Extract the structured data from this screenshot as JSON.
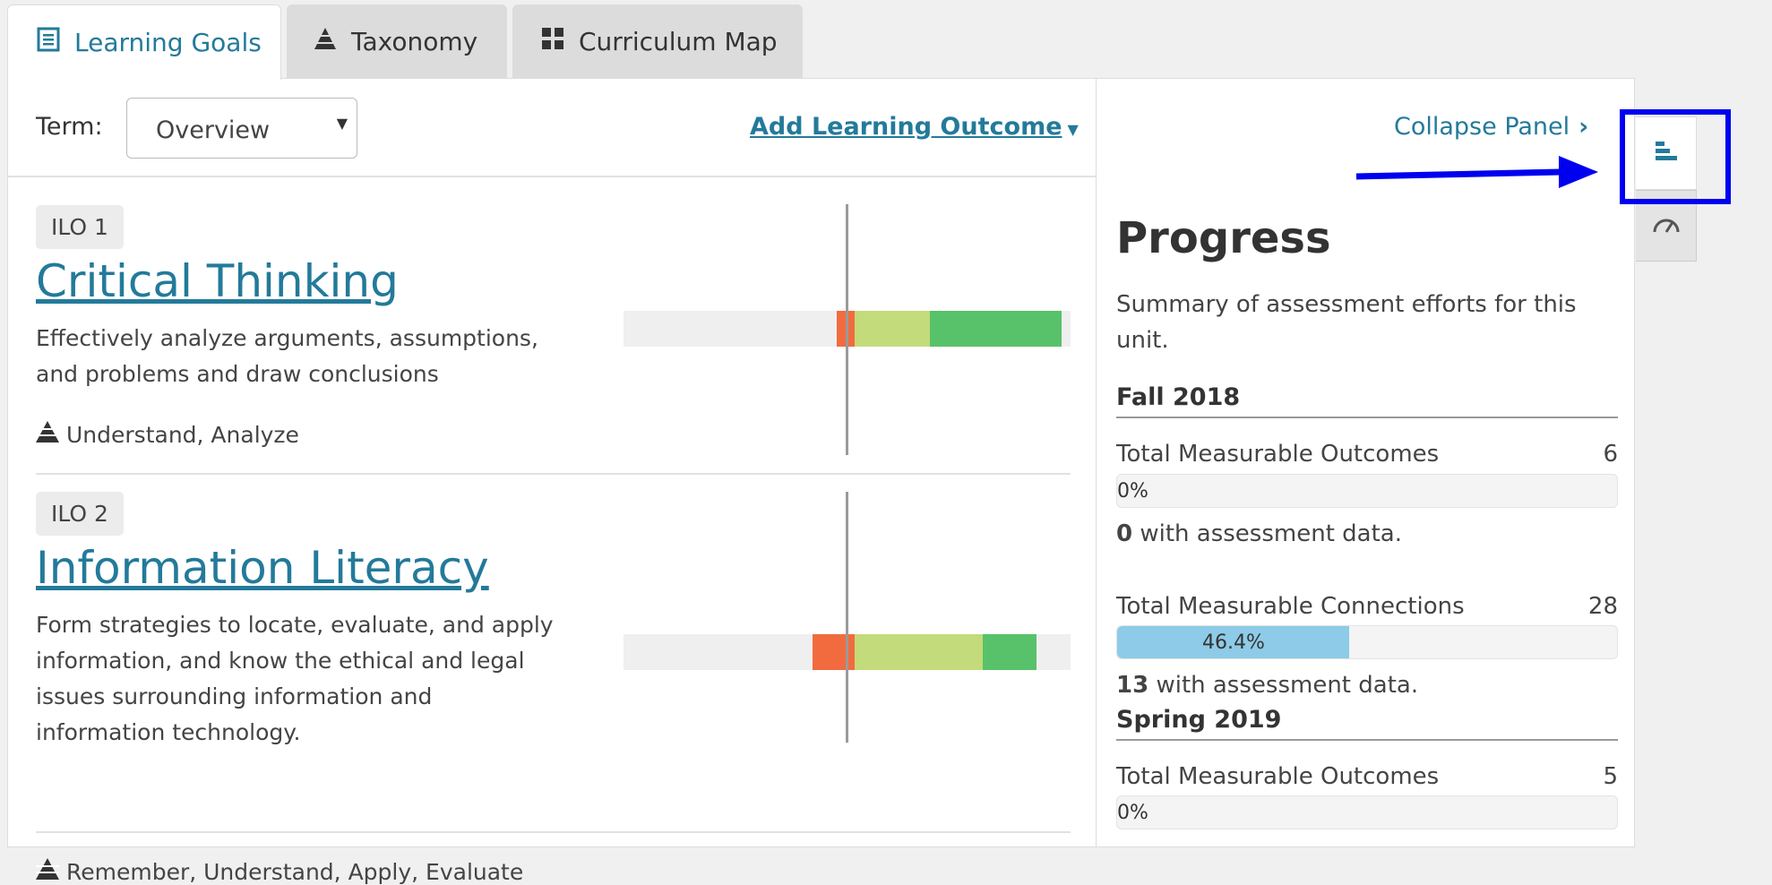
{
  "tabs": [
    {
      "label": "Learning Goals",
      "icon": "list-icon",
      "active": true
    },
    {
      "label": "Taxonomy",
      "icon": "pyramid-icon",
      "active": false
    },
    {
      "label": "Curriculum Map",
      "icon": "grid-icon",
      "active": false
    }
  ],
  "toolbar": {
    "term_label": "Term:",
    "term_value": "Overview",
    "add_outcome": "Add Learning Outcome"
  },
  "outcomes": [
    {
      "badge": "ILO 1",
      "title": "Critical Thinking",
      "desc_lines": [
        "Effectively analyze arguments, assumptions,",
        "and problems and draw conclusions"
      ],
      "taxonomy": "Understand, Analyze"
    },
    {
      "badge": "ILO 2",
      "title": "Information Literacy",
      "desc_lines": [
        "Form strategies to locate, evaluate, and apply",
        "information, and know the ethical and legal",
        "issues surrounding information and",
        "information technology."
      ],
      "taxonomy": "Remember, Understand, Apply, Evaluate"
    }
  ],
  "colors": {
    "accent": "#237a9a",
    "red": "#f26b3f",
    "light_green": "#c3db7a",
    "green": "#58c26a",
    "progress_fill": "#8dcbe8",
    "highlight": "#0000f0"
  },
  "panel": {
    "collapse": "Collapse Panel",
    "heading": "Progress",
    "summary": "Summary of assessment efforts for this unit.",
    "terms": [
      {
        "name": "Fall 2018",
        "outcomes_label": "Total Measurable Outcomes",
        "outcomes_value": "6",
        "outcomes_pct": "0%",
        "outcomes_assessed": "0",
        "assessed_suffix": "with assessment data.",
        "connections_label": "Total Measurable Connections",
        "connections_value": "28",
        "connections_pct": "46.4%",
        "connections_assessed": "13"
      },
      {
        "name": "Spring 2019",
        "outcomes_label": "Total Measurable Outcomes",
        "outcomes_value": "5",
        "outcomes_pct": "0%"
      }
    ]
  },
  "side_icons": [
    "bar-chart-icon",
    "gauge-icon"
  ]
}
